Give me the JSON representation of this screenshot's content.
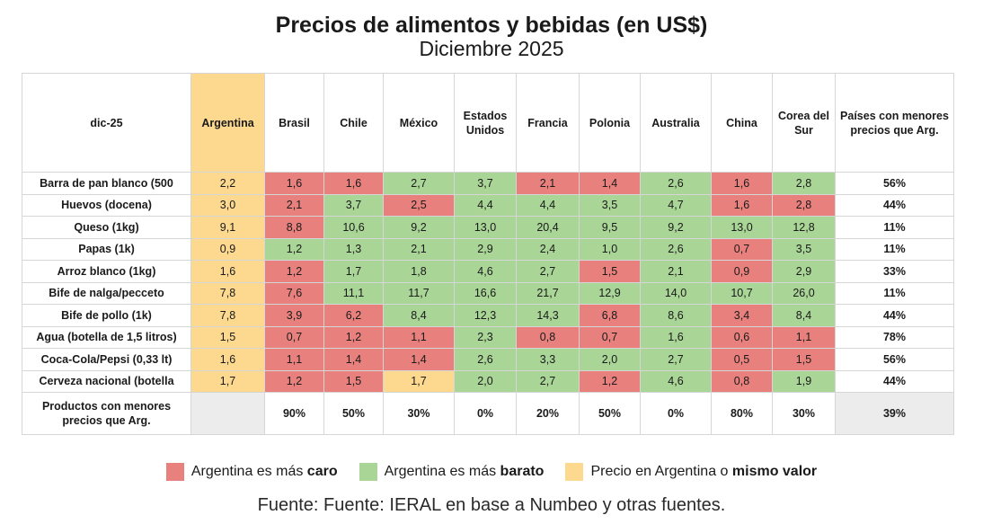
{
  "chart_data": {
    "type": "table",
    "title": "Precios de alimentos y bebidas (en US$)",
    "subtitle": "Diciembre 2025",
    "header": {
      "label": "dic-25",
      "countries": [
        "Argentina",
        "Brasil",
        "Chile",
        "México",
        "Estados Unidos",
        "Francia",
        "Polonia",
        "Australia",
        "China",
        "Corea del Sur"
      ],
      "summary": "Países con menores precios que Arg."
    },
    "rows": [
      {
        "product": "Barra de pan blanco (500",
        "values": [
          "2,2",
          "1,6",
          "1,6",
          "2,7",
          "3,7",
          "2,1",
          "1,4",
          "2,6",
          "1,6",
          "2,8"
        ],
        "status": [
          "arg",
          "red",
          "red",
          "green",
          "green",
          "red",
          "red",
          "green",
          "red",
          "green"
        ],
        "summary": "56%"
      },
      {
        "product": "Huevos (docena)",
        "values": [
          "3,0",
          "2,1",
          "3,7",
          "2,5",
          "4,4",
          "4,4",
          "3,5",
          "4,7",
          "1,6",
          "2,8"
        ],
        "status": [
          "arg",
          "red",
          "green",
          "red",
          "green",
          "green",
          "green",
          "green",
          "red",
          "red"
        ],
        "summary": "44%"
      },
      {
        "product": "Queso (1kg)",
        "values": [
          "9,1",
          "8,8",
          "10,6",
          "9,2",
          "13,0",
          "20,4",
          "9,5",
          "9,2",
          "13,0",
          "12,8"
        ],
        "status": [
          "arg",
          "red",
          "green",
          "green",
          "green",
          "green",
          "green",
          "green",
          "green",
          "green"
        ],
        "summary": "11%"
      },
      {
        "product": "Papas (1k)",
        "values": [
          "0,9",
          "1,2",
          "1,3",
          "2,1",
          "2,9",
          "2,4",
          "1,0",
          "2,6",
          "0,7",
          "3,5"
        ],
        "status": [
          "arg",
          "green",
          "green",
          "green",
          "green",
          "green",
          "green",
          "green",
          "red",
          "green"
        ],
        "summary": "11%"
      },
      {
        "product": "Arroz blanco (1kg)",
        "values": [
          "1,6",
          "1,2",
          "1,7",
          "1,8",
          "4,6",
          "2,7",
          "1,5",
          "2,1",
          "0,9",
          "2,9"
        ],
        "status": [
          "arg",
          "red",
          "green",
          "green",
          "green",
          "green",
          "red",
          "green",
          "red",
          "green"
        ],
        "summary": "33%"
      },
      {
        "product": "Bife de nalga/pecceto",
        "values": [
          "7,8",
          "7,6",
          "11,1",
          "11,7",
          "16,6",
          "21,7",
          "12,9",
          "14,0",
          "10,7",
          "26,0"
        ],
        "status": [
          "arg",
          "red",
          "green",
          "green",
          "green",
          "green",
          "green",
          "green",
          "green",
          "green"
        ],
        "summary": "11%"
      },
      {
        "product": "Bife de pollo (1k)",
        "values": [
          "7,8",
          "3,9",
          "6,2",
          "8,4",
          "12,3",
          "14,3",
          "6,8",
          "8,6",
          "3,4",
          "8,4"
        ],
        "status": [
          "arg",
          "red",
          "red",
          "green",
          "green",
          "green",
          "red",
          "green",
          "red",
          "green"
        ],
        "summary": "44%"
      },
      {
        "product": "Agua (botella de 1,5 litros)",
        "values": [
          "1,5",
          "0,7",
          "1,2",
          "1,1",
          "2,3",
          "0,8",
          "0,7",
          "1,6",
          "0,6",
          "1,1"
        ],
        "status": [
          "arg",
          "red",
          "red",
          "red",
          "green",
          "red",
          "red",
          "green",
          "red",
          "red"
        ],
        "summary": "78%"
      },
      {
        "product": "Coca-Cola/Pepsi (0,33 lt)",
        "values": [
          "1,6",
          "1,1",
          "1,4",
          "1,4",
          "2,6",
          "3,3",
          "2,0",
          "2,7",
          "0,5",
          "1,5"
        ],
        "status": [
          "arg",
          "red",
          "red",
          "red",
          "green",
          "green",
          "green",
          "green",
          "red",
          "red"
        ],
        "summary": "56%"
      },
      {
        "product": "Cerveza nacional (botella",
        "values": [
          "1,7",
          "1,2",
          "1,5",
          "1,7",
          "2,0",
          "2,7",
          "1,2",
          "4,6",
          "0,8",
          "1,9"
        ],
        "status": [
          "arg",
          "red",
          "red",
          "arg",
          "green",
          "green",
          "red",
          "green",
          "red",
          "green"
        ],
        "summary": "44%"
      }
    ],
    "footer": {
      "label": "Productos con menores precios que Arg.",
      "values": [
        "",
        "90%",
        "50%",
        "30%",
        "0%",
        "20%",
        "50%",
        "0%",
        "80%",
        "30%"
      ],
      "summary": "39%"
    }
  },
  "legend": [
    {
      "text": "Argentina es más ",
      "bold": "caro",
      "color": "#e8817d"
    },
    {
      "text": "Argentina es más ",
      "bold": "barato",
      "color": "#a9d597"
    },
    {
      "text": "Precio en Argentina o ",
      "bold": "mismo valor",
      "color": "#fdd990"
    }
  ],
  "source": "Fuente: Fuente: IERAL en base a Numbeo y otras fuentes."
}
